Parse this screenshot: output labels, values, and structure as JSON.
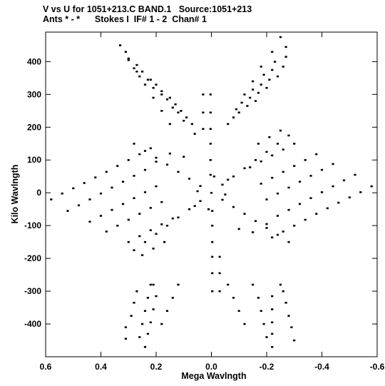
{
  "header": {
    "line1": "V vs U for 1051+213.C BAND.1   Source:1051+213",
    "line2": "Ants * - *      Stokes I  IF# 1 - 2  Chan# 1"
  },
  "chart_data": {
    "type": "scatter",
    "xlabel": "Mega Wavlngth",
    "ylabel": "Kilo Wavlngth",
    "xlim": [
      0.6,
      -0.6
    ],
    "ylim": [
      -500,
      490
    ],
    "x_ticks": [
      0.6,
      0.4,
      0.2,
      0.0,
      -0.2,
      -0.4,
      -0.6
    ],
    "x_tick_labels": [
      "0.6",
      "0.4",
      "0.2",
      "0.0",
      "-0.2",
      "-0.4",
      "-0.6"
    ],
    "y_ticks": [
      400,
      300,
      200,
      100,
      0,
      -100,
      -200,
      -300,
      -400
    ],
    "y_tick_labels": [
      "400",
      "300",
      "200",
      "100",
      "0",
      "-100",
      "-200",
      "-300",
      "-400"
    ],
    "grid": false,
    "marker_color": "#000000",
    "series": [
      {
        "points": [
          [
            0.0,
            0
          ],
          [
            0.003,
            300
          ],
          [
            0.003,
            245
          ],
          [
            0.003,
            195
          ],
          [
            0.003,
            150
          ],
          [
            0.003,
            100
          ],
          [
            0.003,
            55
          ],
          [
            -0.003,
            -300
          ],
          [
            -0.003,
            -245
          ],
          [
            -0.003,
            -195
          ],
          [
            -0.003,
            -150
          ],
          [
            -0.003,
            -100
          ],
          [
            -0.003,
            -55
          ],
          [
            -0.28,
            175
          ],
          [
            -0.24,
            150
          ],
          [
            -0.2,
            125
          ],
          [
            -0.16,
            100
          ],
          [
            -0.12,
            75
          ],
          [
            -0.08,
            50
          ],
          [
            -0.04,
            25
          ],
          [
            0.28,
            -175
          ],
          [
            0.24,
            -150
          ],
          [
            0.2,
            -125
          ],
          [
            0.16,
            -100
          ],
          [
            0.12,
            -75
          ],
          [
            0.08,
            -50
          ],
          [
            0.04,
            -25
          ],
          [
            0.28,
            150
          ],
          [
            0.24,
            128
          ],
          [
            0.2,
            107
          ],
          [
            0.16,
            86
          ],
          [
            0.12,
            64
          ],
          [
            0.08,
            43
          ],
          [
            0.04,
            21
          ],
          [
            -0.28,
            -150
          ],
          [
            -0.24,
            -128
          ],
          [
            -0.2,
            -107
          ],
          [
            -0.16,
            -86
          ],
          [
            -0.12,
            -64
          ],
          [
            -0.08,
            -43
          ],
          [
            -0.04,
            -21
          ],
          [
            0.03,
            300
          ],
          [
            0.03,
            245
          ],
          [
            0.03,
            195
          ],
          [
            -0.03,
            -300
          ],
          [
            -0.03,
            -245
          ],
          [
            -0.03,
            -195
          ],
          [
            0.33,
            450
          ],
          [
            0.3,
            410
          ],
          [
            0.27,
            370
          ],
          [
            0.24,
            330
          ],
          [
            0.21,
            290
          ],
          [
            0.18,
            250
          ],
          [
            0.15,
            210
          ],
          [
            0.31,
            430
          ],
          [
            0.27,
            390
          ],
          [
            0.22,
            345
          ],
          [
            0.18,
            300
          ],
          [
            0.14,
            260
          ],
          [
            0.1,
            220
          ],
          [
            0.06,
            180
          ],
          [
            0.3,
            405
          ],
          [
            0.25,
            370
          ],
          [
            0.2,
            330
          ],
          [
            0.15,
            290
          ],
          [
            0.11,
            250
          ],
          [
            0.07,
            210
          ],
          [
            0.28,
            380
          ],
          [
            0.23,
            345
          ],
          [
            0.18,
            310
          ],
          [
            0.13,
            270
          ],
          [
            0.09,
            230
          ],
          [
            0.26,
            355
          ],
          [
            0.21,
            320
          ],
          [
            0.16,
            285
          ],
          [
            0.12,
            245
          ],
          [
            -0.25,
            475
          ],
          [
            -0.22,
            430
          ],
          [
            -0.18,
            385
          ],
          [
            -0.15,
            340
          ],
          [
            -0.12,
            300
          ],
          [
            -0.09,
            255
          ],
          [
            -0.06,
            210
          ],
          [
            -0.27,
            445
          ],
          [
            -0.23,
            400
          ],
          [
            -0.19,
            360
          ],
          [
            -0.15,
            315
          ],
          [
            -0.11,
            275
          ],
          [
            -0.08,
            230
          ],
          [
            -0.27,
            415
          ],
          [
            -0.22,
            375
          ],
          [
            -0.18,
            330
          ],
          [
            -0.14,
            290
          ],
          [
            -0.1,
            245
          ],
          [
            -0.26,
            385
          ],
          [
            -0.21,
            345
          ],
          [
            -0.17,
            305
          ],
          [
            -0.13,
            265
          ],
          [
            -0.24,
            355
          ],
          [
            -0.2,
            320
          ],
          [
            -0.16,
            280
          ],
          [
            -0.22,
            -470
          ],
          [
            -0.22,
            -430
          ],
          [
            -0.22,
            -395
          ],
          [
            -0.22,
            -355
          ],
          [
            -0.22,
            -315
          ],
          [
            -0.25,
            -280
          ],
          [
            -0.2,
            -440
          ],
          [
            -0.19,
            -400
          ],
          [
            -0.18,
            -360
          ],
          [
            -0.17,
            -320
          ],
          [
            -0.15,
            -280
          ],
          [
            -0.1,
            -360
          ],
          [
            -0.08,
            -320
          ],
          [
            -0.06,
            -280
          ],
          [
            -0.12,
            -400
          ],
          [
            0.24,
            -470
          ],
          [
            0.23,
            -430
          ],
          [
            0.22,
            -395
          ],
          [
            0.21,
            -355
          ],
          [
            0.2,
            -315
          ],
          [
            0.22,
            -280
          ],
          [
            0.26,
            -440
          ],
          [
            0.25,
            -400
          ],
          [
            0.24,
            -360
          ],
          [
            0.23,
            -320
          ],
          [
            0.21,
            -280
          ],
          [
            0.16,
            -360
          ],
          [
            0.14,
            -320
          ],
          [
            0.12,
            -280
          ],
          [
            0.18,
            -400
          ],
          [
            0.31,
            -445
          ],
          [
            0.31,
            -410
          ],
          [
            0.29,
            -375
          ],
          [
            0.28,
            -335
          ],
          [
            0.27,
            -300
          ],
          [
            -0.3,
            -450
          ],
          [
            -0.29,
            -410
          ],
          [
            -0.28,
            -375
          ],
          [
            -0.27,
            -335
          ],
          [
            -0.26,
            -300
          ],
          [
            0.58,
            -20
          ],
          [
            0.54,
            -2
          ],
          [
            0.5,
            14
          ],
          [
            0.46,
            30
          ],
          [
            0.42,
            47
          ],
          [
            0.38,
            64
          ],
          [
            0.34,
            82
          ],
          [
            0.3,
            100
          ],
          [
            0.26,
            118
          ],
          [
            0.22,
            136
          ],
          [
            0.52,
            -55
          ],
          [
            0.48,
            -38
          ],
          [
            0.44,
            -20
          ],
          [
            0.4,
            -2
          ],
          [
            0.36,
            16
          ],
          [
            0.32,
            34
          ],
          [
            0.28,
            52
          ],
          [
            0.24,
            70
          ],
          [
            0.44,
            -88
          ],
          [
            0.4,
            -70
          ],
          [
            0.36,
            -52
          ],
          [
            0.32,
            -34
          ],
          [
            0.28,
            -16
          ],
          [
            0.24,
            2
          ],
          [
            0.2,
            20
          ],
          [
            0.38,
            -118
          ],
          [
            0.34,
            -100
          ],
          [
            0.3,
            -82
          ],
          [
            0.26,
            -64
          ],
          [
            0.22,
            -46
          ],
          [
            0.18,
            -28
          ],
          [
            0.3,
            -150
          ],
          [
            0.26,
            -132
          ],
          [
            0.22,
            -114
          ],
          [
            0.18,
            -96
          ],
          [
            0.14,
            -78
          ],
          [
            0.25,
            -190
          ],
          [
            0.21,
            -170
          ],
          [
            0.17,
            -150
          ],
          [
            -0.58,
            20
          ],
          [
            -0.54,
            2
          ],
          [
            -0.5,
            -14
          ],
          [
            -0.46,
            -30
          ],
          [
            -0.42,
            -47
          ],
          [
            -0.38,
            -64
          ],
          [
            -0.34,
            -82
          ],
          [
            -0.3,
            -100
          ],
          [
            -0.26,
            -118
          ],
          [
            -0.22,
            -136
          ],
          [
            -0.52,
            55
          ],
          [
            -0.48,
            38
          ],
          [
            -0.44,
            20
          ],
          [
            -0.4,
            2
          ],
          [
            -0.36,
            -16
          ],
          [
            -0.32,
            -34
          ],
          [
            -0.28,
            -52
          ],
          [
            -0.24,
            -70
          ],
          [
            -0.44,
            88
          ],
          [
            -0.4,
            70
          ],
          [
            -0.36,
            52
          ],
          [
            -0.32,
            34
          ],
          [
            -0.28,
            16
          ],
          [
            -0.24,
            -2
          ],
          [
            -0.2,
            -20
          ],
          [
            -0.38,
            118
          ],
          [
            -0.34,
            100
          ],
          [
            -0.3,
            82
          ],
          [
            -0.26,
            64
          ],
          [
            -0.22,
            46
          ],
          [
            -0.18,
            28
          ],
          [
            -0.3,
            150
          ],
          [
            -0.26,
            132
          ],
          [
            -0.22,
            114
          ],
          [
            -0.18,
            96
          ],
          [
            -0.14,
            78
          ],
          [
            -0.25,
            190
          ],
          [
            -0.21,
            170
          ],
          [
            -0.17,
            150
          ],
          [
            0.1,
            110
          ],
          [
            0.15,
            120
          ],
          [
            0.2,
            95
          ],
          [
            -0.1,
            -110
          ],
          [
            -0.15,
            -120
          ],
          [
            -0.2,
            -95
          ],
          [
            0.06,
            -40
          ],
          [
            -0.06,
            40
          ],
          [
            0.01,
            -50
          ],
          [
            -0.01,
            50
          ],
          [
            0.05,
            5
          ],
          [
            -0.05,
            -5
          ]
        ]
      }
    ]
  }
}
